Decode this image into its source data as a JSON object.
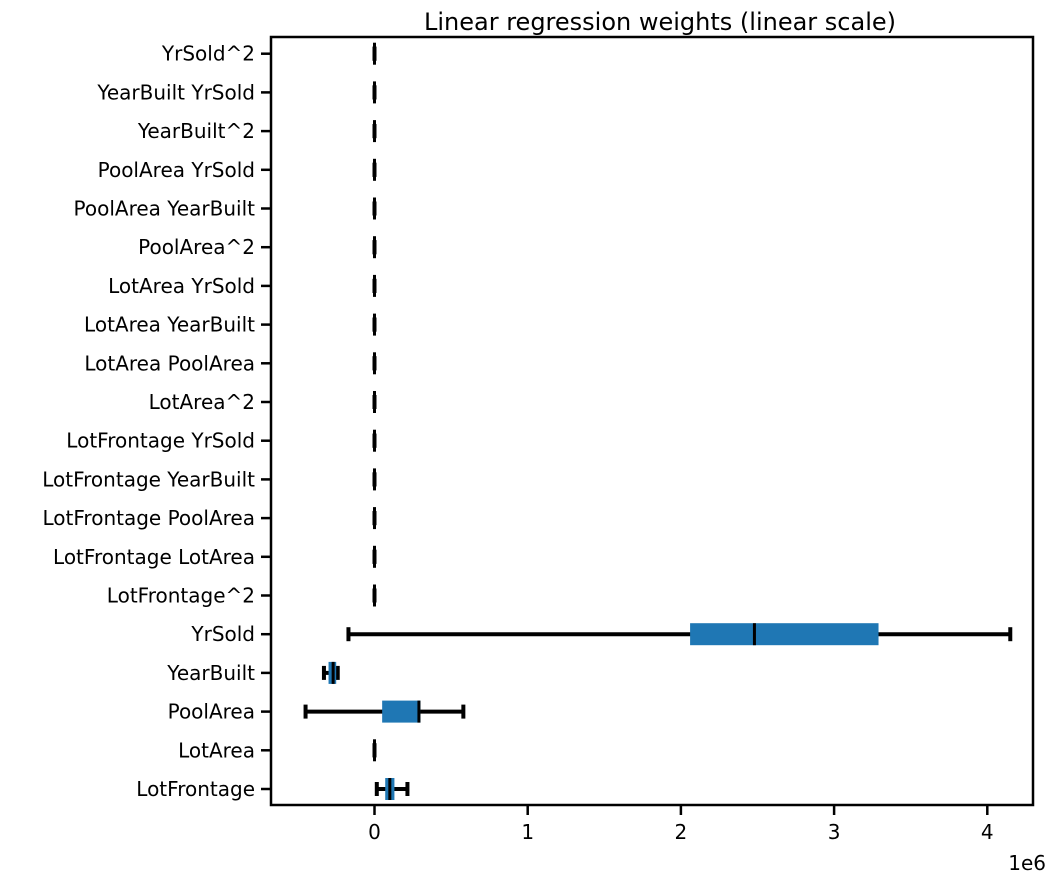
{
  "chart_data": {
    "type": "box",
    "orientation": "horizontal",
    "title": "Linear regression weights (linear scale)",
    "xlabel": "",
    "ylabel": "",
    "x_offset_label": "1e6",
    "x_scale_factor": 1000000,
    "xlim": [
      -670000,
      4400000
    ],
    "xticks": [
      0,
      1000000,
      2000000,
      3000000,
      4000000
    ],
    "xtick_labels": [
      "0",
      "1",
      "2",
      "3",
      "4"
    ],
    "grid": false,
    "box_color": "#1f77b4",
    "line_color": "#000000",
    "categories": [
      "LotFrontage",
      "LotArea",
      "PoolArea",
      "YearBuilt",
      "YrSold",
      "LotFrontage^2",
      "LotFrontage LotArea",
      "LotFrontage PoolArea",
      "LotFrontage YearBuilt",
      "LotFrontage YrSold",
      "LotArea^2",
      "LotArea PoolArea",
      "LotArea YearBuilt",
      "LotArea YrSold",
      "PoolArea^2",
      "PoolArea YearBuilt",
      "PoolArea YrSold",
      "YearBuilt^2",
      "YearBuilt YrSold",
      "YrSold^2"
    ],
    "boxes": [
      {
        "whislo": 15000,
        "q1": 70000,
        "med": 100000,
        "q3": 130000,
        "whishi": 215000
      },
      {
        "whislo": 0,
        "q1": 0,
        "med": 0,
        "q3": 0,
        "whishi": 0
      },
      {
        "whislo": -450000,
        "q1": 50000,
        "med": 290000,
        "q3": 300000,
        "whishi": 580000
      },
      {
        "whislo": -330000,
        "q1": -300000,
        "med": -270000,
        "q3": -250000,
        "whishi": -240000
      },
      {
        "whislo": -170000,
        "q1": 2060000,
        "med": 2480000,
        "q3": 3290000,
        "whishi": 4150000
      },
      {
        "whislo": 0,
        "q1": 0,
        "med": 0,
        "q3": 0,
        "whishi": 0
      },
      {
        "whislo": 0,
        "q1": 0,
        "med": 0,
        "q3": 0,
        "whishi": 0
      },
      {
        "whislo": 0,
        "q1": 0,
        "med": 0,
        "q3": 0,
        "whishi": 0
      },
      {
        "whislo": 0,
        "q1": 0,
        "med": 0,
        "q3": 0,
        "whishi": 0
      },
      {
        "whislo": 0,
        "q1": 0,
        "med": 0,
        "q3": 0,
        "whishi": 0
      },
      {
        "whislo": 0,
        "q1": 0,
        "med": 0,
        "q3": 0,
        "whishi": 0
      },
      {
        "whislo": 0,
        "q1": 0,
        "med": 0,
        "q3": 0,
        "whishi": 0
      },
      {
        "whislo": 0,
        "q1": 0,
        "med": 0,
        "q3": 0,
        "whishi": 0
      },
      {
        "whislo": 0,
        "q1": 0,
        "med": 0,
        "q3": 0,
        "whishi": 0
      },
      {
        "whislo": 0,
        "q1": 0,
        "med": 0,
        "q3": 0,
        "whishi": 0
      },
      {
        "whislo": 0,
        "q1": 0,
        "med": 0,
        "q3": 0,
        "whishi": 0
      },
      {
        "whislo": 0,
        "q1": 0,
        "med": 0,
        "q3": 0,
        "whishi": 0
      },
      {
        "whislo": 0,
        "q1": 0,
        "med": 0,
        "q3": 0,
        "whishi": 0
      },
      {
        "whislo": 0,
        "q1": 0,
        "med": 0,
        "q3": 0,
        "whishi": 0
      },
      {
        "whislo": 0,
        "q1": 0,
        "med": 0,
        "q3": 0,
        "whishi": 0
      }
    ]
  }
}
